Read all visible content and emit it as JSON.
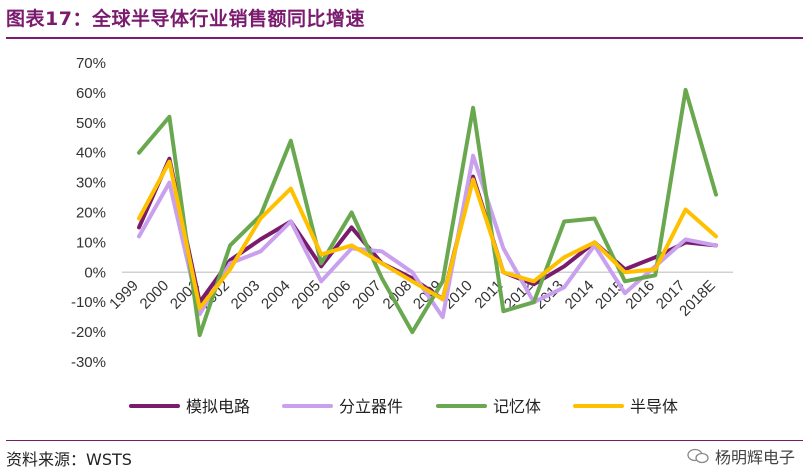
{
  "header": {
    "title": "图表17：全球半导体行业销售额同比增速"
  },
  "footer": {
    "source": "资料来源：WSTS",
    "watermark": "杨明辉电子"
  },
  "chart_data": {
    "type": "line",
    "title": "",
    "xlabel": "",
    "ylabel": "",
    "categories": [
      "1999",
      "2000",
      "2001",
      "2002",
      "2003",
      "2004",
      "2005",
      "2006",
      "2007",
      "2008",
      "2009",
      "2010",
      "2011",
      "2012",
      "2013",
      "2014",
      "2015",
      "2016",
      "2017",
      "2018E"
    ],
    "ylim": [
      -30,
      70
    ],
    "yticks": [
      70,
      60,
      50,
      40,
      30,
      20,
      10,
      0,
      -10,
      -20,
      -30
    ],
    "ytick_labels": [
      "70%",
      "60%",
      "50%",
      "40%",
      "30%",
      "20%",
      "10%",
      "0%",
      "-10%",
      "-20%",
      "-30%"
    ],
    "legend_position": "bottom",
    "grid": false,
    "series": [
      {
        "name": "模拟电路",
        "color": "#7a1b6e",
        "values": [
          15,
          38,
          -10,
          4,
          11,
          17,
          2,
          15,
          3,
          -2,
          -9,
          32,
          0,
          -4,
          2,
          10,
          1,
          5,
          10,
          9
        ]
      },
      {
        "name": "分立器件",
        "color": "#c9a0ee",
        "values": [
          12,
          30,
          -14,
          3,
          7,
          17,
          -3,
          8,
          7,
          0,
          -15,
          39,
          8,
          -10,
          -5,
          9,
          -7,
          2,
          11,
          9
        ]
      },
      {
        "name": "记忆体",
        "color": "#6aa84f",
        "values": [
          40,
          52,
          -21,
          9,
          19,
          44,
          3,
          20,
          -2,
          -20,
          -3,
          55,
          -13,
          -10,
          17,
          18,
          -3,
          -1,
          61,
          26
        ]
      },
      {
        "name": "半导体",
        "color": "#ffc000",
        "values": [
          18,
          37,
          -12,
          1,
          18,
          28,
          6,
          9,
          3,
          -3,
          -9,
          31,
          0,
          -3,
          5,
          10,
          0,
          1,
          21,
          12
        ]
      }
    ]
  }
}
